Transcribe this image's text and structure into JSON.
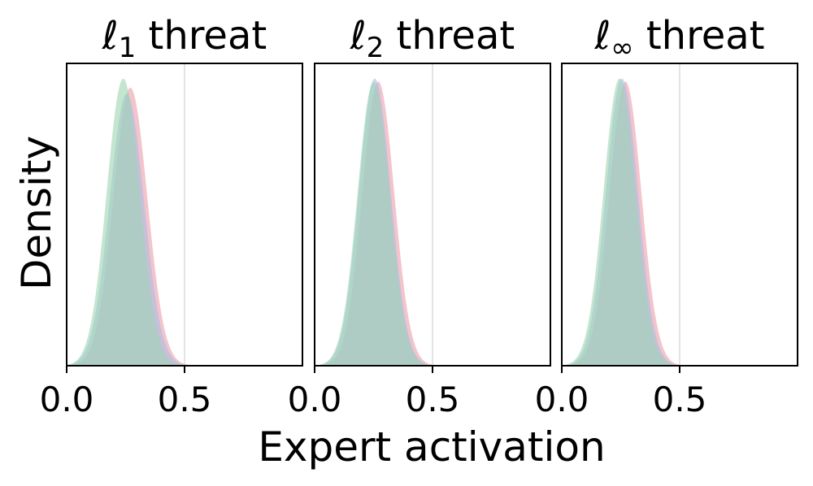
{
  "chart_data": {
    "type": "area",
    "xlabel": "Expert activation",
    "ylabel": "Density",
    "xlim": [
      0.0,
      1.0
    ],
    "x_ticks": [
      0.0,
      0.5
    ],
    "x_tick_labels": [
      "0.0",
      "0.5"
    ],
    "y_ticks": [],
    "reference_line_x": 0.5,
    "grid": false,
    "legend": "none",
    "colors": {
      "green": "#9fd4b3",
      "red": "#eb9fa8",
      "blue": "#a9bde6",
      "ref_line": "#dddddd",
      "axes": "#000000"
    },
    "panels": [
      {
        "title_symbol": "ℓ",
        "title_sub": "1",
        "title_rest": " threat",
        "series": [
          {
            "color_key": "red",
            "mean": 0.27,
            "sd": 0.072,
            "peak": 0.92
          },
          {
            "color_key": "blue",
            "mean": 0.255,
            "sd": 0.073,
            "peak": 0.9
          },
          {
            "color_key": "green",
            "mean": 0.24,
            "sd": 0.07,
            "peak": 0.95
          }
        ]
      },
      {
        "title_symbol": "ℓ",
        "title_sub": "2",
        "title_rest": " threat",
        "series": [
          {
            "color_key": "red",
            "mean": 0.27,
            "sd": 0.068,
            "peak": 0.94
          },
          {
            "color_key": "blue",
            "mean": 0.255,
            "sd": 0.068,
            "peak": 0.95
          },
          {
            "color_key": "green",
            "mean": 0.25,
            "sd": 0.068,
            "peak": 0.94
          }
        ]
      },
      {
        "title_symbol": "ℓ",
        "title_sub": "∞",
        "title_rest": " threat",
        "series": [
          {
            "color_key": "red",
            "mean": 0.27,
            "sd": 0.068,
            "peak": 0.94
          },
          {
            "color_key": "blue",
            "mean": 0.255,
            "sd": 0.068,
            "peak": 0.95
          },
          {
            "color_key": "green",
            "mean": 0.245,
            "sd": 0.068,
            "peak": 0.95
          }
        ]
      }
    ]
  }
}
